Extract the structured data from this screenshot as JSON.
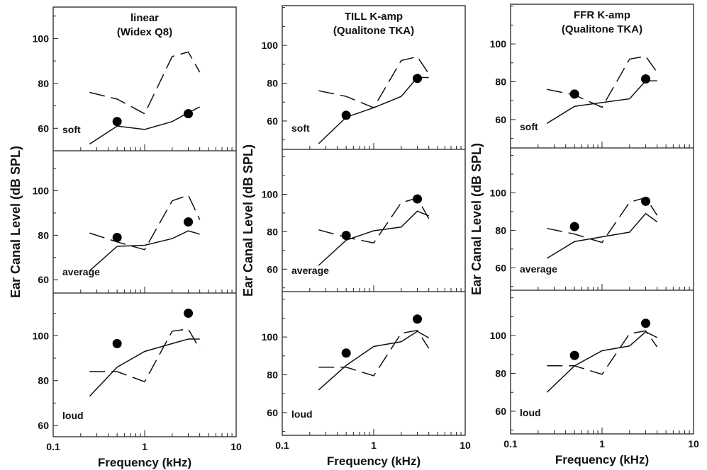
{
  "figure": {
    "xlabel": "Frequency (kHz)",
    "ylabel": "Ear Canal Level (dB SPL)",
    "x_ticks": [
      "0.1",
      "1",
      "10"
    ]
  },
  "chart_data": [
    {
      "type": "line",
      "title_lines": [
        "linear",
        "(Widex Q8)"
      ],
      "x_scale": "log",
      "xlim": [
        0.1,
        10
      ],
      "panels": [
        {
          "label": "soft",
          "ylim": [
            50,
            114
          ],
          "y_ticks": [
            60,
            80,
            100
          ],
          "series": [
            {
              "style": "solid",
              "x": [
                0.25,
                0.5,
                1,
                2,
                3,
                4
              ],
              "y": [
                53,
                61,
                59.5,
                63,
                67,
                69.5
              ]
            },
            {
              "style": "dashed",
              "x": [
                0.25,
                0.5,
                1,
                2,
                3,
                4
              ],
              "y": [
                76,
                73,
                66.5,
                92,
                94,
                85
              ]
            },
            {
              "style": "points",
              "x": [
                0.5,
                3
              ],
              "y": [
                63,
                66.5
              ]
            }
          ]
        },
        {
          "label": "average",
          "ylim": [
            54,
            118
          ],
          "y_ticks": [
            60,
            80,
            100
          ],
          "series": [
            {
              "style": "solid",
              "x": [
                0.25,
                0.5,
                1,
                2,
                3,
                4
              ],
              "y": [
                64,
                75,
                75.5,
                78.5,
                82,
                80.5
              ]
            },
            {
              "style": "dashed",
              "x": [
                0.25,
                0.5,
                1,
                2,
                3,
                4
              ],
              "y": [
                81,
                77,
                73.5,
                95.5,
                98,
                87
              ]
            },
            {
              "style": "points",
              "x": [
                0.5,
                3
              ],
              "y": [
                79,
                86
              ]
            }
          ]
        },
        {
          "label": "loud",
          "ylim": [
            55,
            119
          ],
          "y_ticks": [
            60,
            80,
            100
          ],
          "series": [
            {
              "style": "solid",
              "x": [
                0.25,
                0.5,
                1,
                2,
                3,
                4
              ],
              "y": [
                73,
                86,
                93,
                96.5,
                98.5,
                98.5
              ]
            },
            {
              "style": "dashed",
              "x": [
                0.25,
                0.5,
                1,
                2,
                3,
                4
              ],
              "y": [
                84,
                84,
                79.5,
                102,
                103,
                94
              ]
            },
            {
              "style": "points",
              "x": [
                0.5,
                3
              ],
              "y": [
                96.5,
                110
              ]
            }
          ]
        }
      ]
    },
    {
      "type": "line",
      "title_lines": [
        "TILL K-amp",
        "(Qualitone TKA)"
      ],
      "x_scale": "log",
      "xlim": [
        0.1,
        10
      ],
      "panels": [
        {
          "label": "soft",
          "ylim": [
            45,
            121
          ],
          "y_ticks": [
            60,
            80,
            100
          ],
          "series": [
            {
              "style": "solid",
              "x": [
                0.25,
                0.5,
                1,
                2,
                3,
                4
              ],
              "y": [
                48,
                62,
                67,
                73,
                83,
                83
              ]
            },
            {
              "style": "dashed",
              "x": [
                0.25,
                0.5,
                1,
                2,
                3,
                4
              ],
              "y": [
                76,
                73,
                67,
                92,
                94,
                85
              ]
            },
            {
              "style": "points",
              "x": [
                0.5,
                3
              ],
              "y": [
                63,
                82.5
              ]
            }
          ]
        },
        {
          "label": "average",
          "ylim": [
            48,
            124
          ],
          "y_ticks": [
            60,
            80,
            100
          ],
          "series": [
            {
              "style": "solid",
              "x": [
                0.25,
                0.5,
                1,
                2,
                3,
                4
              ],
              "y": [
                62,
                75.5,
                80.5,
                82.5,
                91,
                88.5
              ]
            },
            {
              "style": "dashed",
              "x": [
                0.25,
                0.5,
                1,
                2,
                3,
                4
              ],
              "y": [
                81,
                77,
                74,
                95.5,
                98,
                87
              ]
            },
            {
              "style": "points",
              "x": [
                0.5,
                3
              ],
              "y": [
                78,
                97.5
              ]
            }
          ]
        },
        {
          "label": "loud",
          "ylim": [
            48,
            124
          ],
          "y_ticks": [
            60,
            80,
            100
          ],
          "series": [
            {
              "style": "solid",
              "x": [
                0.25,
                0.5,
                1,
                2,
                3,
                4
              ],
              "y": [
                72,
                85,
                95,
                97.5,
                103,
                99.5
              ]
            },
            {
              "style": "dashed",
              "x": [
                0.25,
                0.5,
                1,
                2,
                3,
                4
              ],
              "y": [
                84,
                84,
                79.5,
                102,
                103.5,
                94
              ]
            },
            {
              "style": "points",
              "x": [
                0.5,
                3
              ],
              "y": [
                91.5,
                109.5
              ]
            }
          ]
        }
      ]
    },
    {
      "type": "line",
      "title_lines": [
        "FFR K-amp",
        "(Qualitone TKA)"
      ],
      "x_scale": "log",
      "xlim": [
        0.1,
        10
      ],
      "panels": [
        {
          "label": "soft",
          "ylim": [
            45,
            121
          ],
          "y_ticks": [
            60,
            80,
            100
          ],
          "series": [
            {
              "style": "solid",
              "x": [
                0.25,
                0.5,
                1,
                2,
                3,
                4
              ],
              "y": [
                58,
                67,
                69,
                71,
                80.5,
                80.5
              ]
            },
            {
              "style": "dashed",
              "x": [
                0.25,
                0.5,
                1,
                2,
                3,
                4
              ],
              "y": [
                76,
                73,
                66.5,
                92,
                93.5,
                85
              ]
            },
            {
              "style": "points",
              "x": [
                0.5,
                3
              ],
              "y": [
                73.5,
                81.5
              ]
            }
          ]
        },
        {
          "label": "average",
          "ylim": [
            48,
            124
          ],
          "y_ticks": [
            60,
            80,
            100
          ],
          "series": [
            {
              "style": "solid",
              "x": [
                0.25,
                0.5,
                1,
                2,
                3,
                4
              ],
              "y": [
                65,
                74,
                76.5,
                79,
                89,
                84.5
              ]
            },
            {
              "style": "dashed",
              "x": [
                0.25,
                0.5,
                1,
                2,
                3,
                4
              ],
              "y": [
                81,
                78,
                73.5,
                95,
                97.5,
                88
              ]
            },
            {
              "style": "points",
              "x": [
                0.5,
                3
              ],
              "y": [
                82,
                95.5
              ]
            }
          ]
        },
        {
          "label": "loud",
          "ylim": [
            48,
            124
          ],
          "y_ticks": [
            60,
            80,
            100
          ],
          "series": [
            {
              "style": "solid",
              "x": [
                0.25,
                0.5,
                1,
                2,
                3,
                4
              ],
              "y": [
                70,
                84,
                92,
                94.5,
                102,
                99
              ]
            },
            {
              "style": "dashed",
              "x": [
                0.25,
                0.5,
                1,
                2,
                3,
                4
              ],
              "y": [
                84,
                84,
                79.5,
                101,
                102.5,
                94
              ]
            },
            {
              "style": "points",
              "x": [
                0.5,
                3
              ],
              "y": [
                89.5,
                106.5
              ]
            }
          ]
        }
      ]
    }
  ]
}
